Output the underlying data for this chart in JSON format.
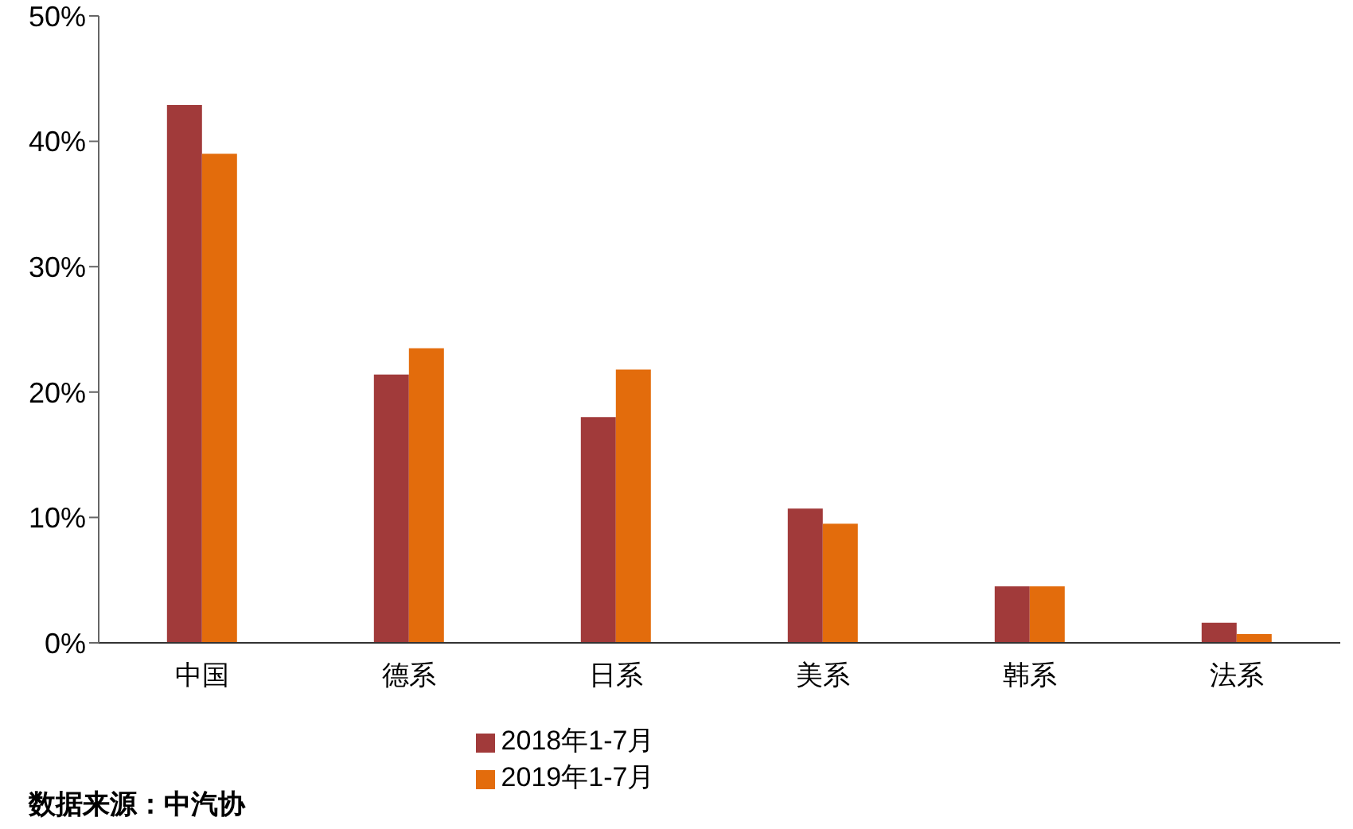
{
  "chart_data": {
    "type": "bar",
    "categories": [
      "中国",
      "德系",
      "日系",
      "美系",
      "韩系",
      "法系"
    ],
    "series": [
      {
        "name": "2018年1-7月",
        "color": "#a13a3a",
        "values": [
          42.9,
          21.4,
          18.0,
          10.7,
          4.5,
          1.6
        ]
      },
      {
        "name": "2019年1-7月",
        "color": "#e36c0c",
        "values": [
          39.0,
          23.5,
          21.8,
          9.5,
          4.5,
          0.7
        ]
      }
    ],
    "ylim": [
      0,
      50
    ],
    "yticks": [
      {
        "value": 0,
        "label": "0%"
      },
      {
        "value": 10,
        "label": "10%"
      },
      {
        "value": 20,
        "label": "20%"
      },
      {
        "value": 30,
        "label": "30%"
      },
      {
        "value": 40,
        "label": "40%"
      },
      {
        "value": 50,
        "label": "50%"
      }
    ],
    "grid": false,
    "legend": "bottom",
    "annotations": [
      "数据来源：中汽协"
    ]
  }
}
